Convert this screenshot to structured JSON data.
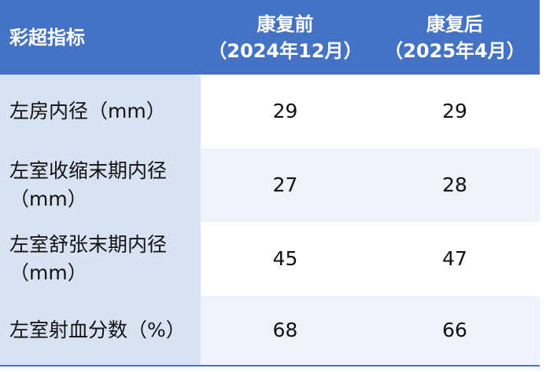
{
  "table": {
    "header": [
      [
        "彩超指标"
      ],
      [
        "康复前",
        "（2024年12月）"
      ],
      [
        "康复后",
        "（2025年4月）"
      ]
    ],
    "rows": [
      [
        "左房内径（mm）",
        29,
        29
      ],
      [
        "左室收缩末期内径（mm）",
        27,
        28
      ],
      [
        "左室舒张末期内径（mm）",
        45,
        47
      ],
      [
        "左室射血分数（%）",
        68,
        66
      ]
    ]
  }
}
